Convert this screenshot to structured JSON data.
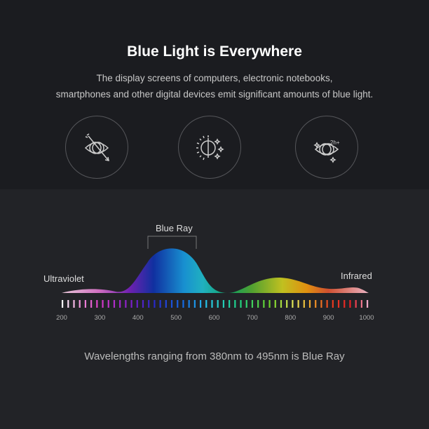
{
  "header": {
    "title": "Blue Light is Everywhere",
    "subtitle_line1": "The display screens of computers, electronic notebooks,",
    "subtitle_line2": "smartphones and other digital devices emit significant amounts of blue light."
  },
  "icons": [
    "eye-arrow-icon",
    "sun-brightness-icon",
    "eye-2h-icon"
  ],
  "icon_text": "2h+",
  "spectrum": {
    "blue_ray_label": "Blue Ray",
    "ultraviolet_label": "Ultraviolet",
    "infrared_label": "Infrared",
    "axis_ticks": [
      "200",
      "300",
      "400",
      "500",
      "600",
      "700",
      "800",
      "900",
      "1000"
    ],
    "axis_range": [
      200,
      1000
    ]
  },
  "footer": "Wavelengths ranging from 380nm to 495nm is Blue Ray"
}
